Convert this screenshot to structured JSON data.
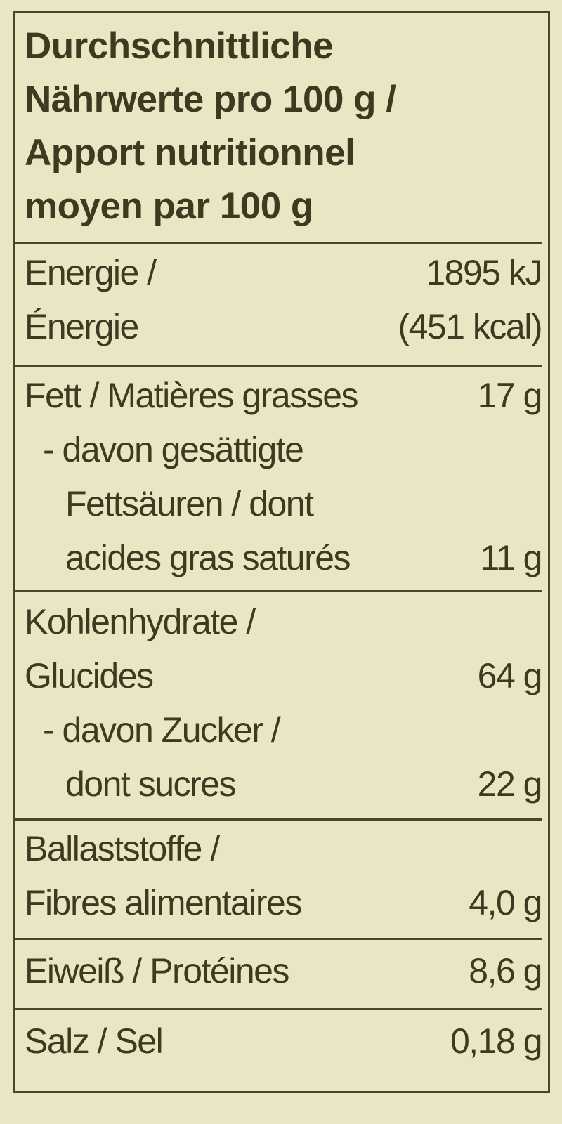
{
  "title_lines": [
    "Durchschnittliche",
    "Nährwerte pro 100 g /",
    "Apport nutritionnel",
    "moyen par 100 g"
  ],
  "rows": {
    "energy": {
      "label1": "Energie /",
      "value1": "1895 kJ",
      "label2": "Énergie",
      "value2": "(451 kcal)"
    },
    "fat": {
      "label": "Fett / Matières grasses",
      "value": "17 g",
      "sub1": "- davon gesättigte",
      "sub2": "Fettsäuren / dont",
      "sub3": "acides gras saturés",
      "sub_value": "11 g"
    },
    "carbs": {
      "label1": "Kohlenhydrate /",
      "label2": "Glucides",
      "value": "64 g",
      "sub1": "- davon Zucker /",
      "sub2": "dont sucres",
      "sub_value": "22 g"
    },
    "fibre": {
      "label1": "Ballaststoffe /",
      "label2": "Fibres alimentaires",
      "value": "4,0 g"
    },
    "protein": {
      "label": "Eiweiß / Protéines",
      "value": "8,6 g"
    },
    "salt": {
      "label": "Salz / Sel",
      "value": "0,18 g"
    }
  },
  "colors": {
    "background": "#e9e7c3",
    "text": "#3d3a22"
  }
}
